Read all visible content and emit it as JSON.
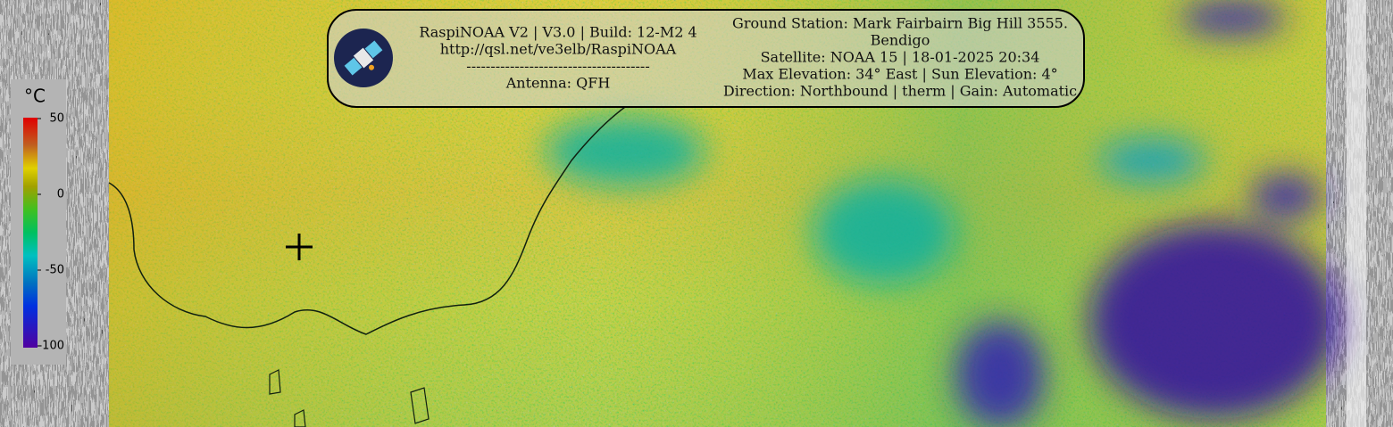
{
  "header": {
    "left_lines": [
      "RaspiNOAA V2 | V3.0 | Build: 12-M2 4",
      "http://qsl.net/ve3elb/RaspiNOAA",
      "--------------------------------------",
      "Antenna: QFH"
    ],
    "right_lines": [
      "Ground Station: Mark Fairbairn Big Hill 3555.",
      "Bendigo",
      "Satellite: NOAA 15 | 18-01-2025 20:34",
      "Max Elevation: 34° East | Sun Elevation: 4°",
      "Direction: Northbound | therm | Gain: Automatic"
    ]
  },
  "legend": {
    "unit": "°C",
    "ticks": [
      50,
      0,
      -50,
      -100
    ]
  }
}
